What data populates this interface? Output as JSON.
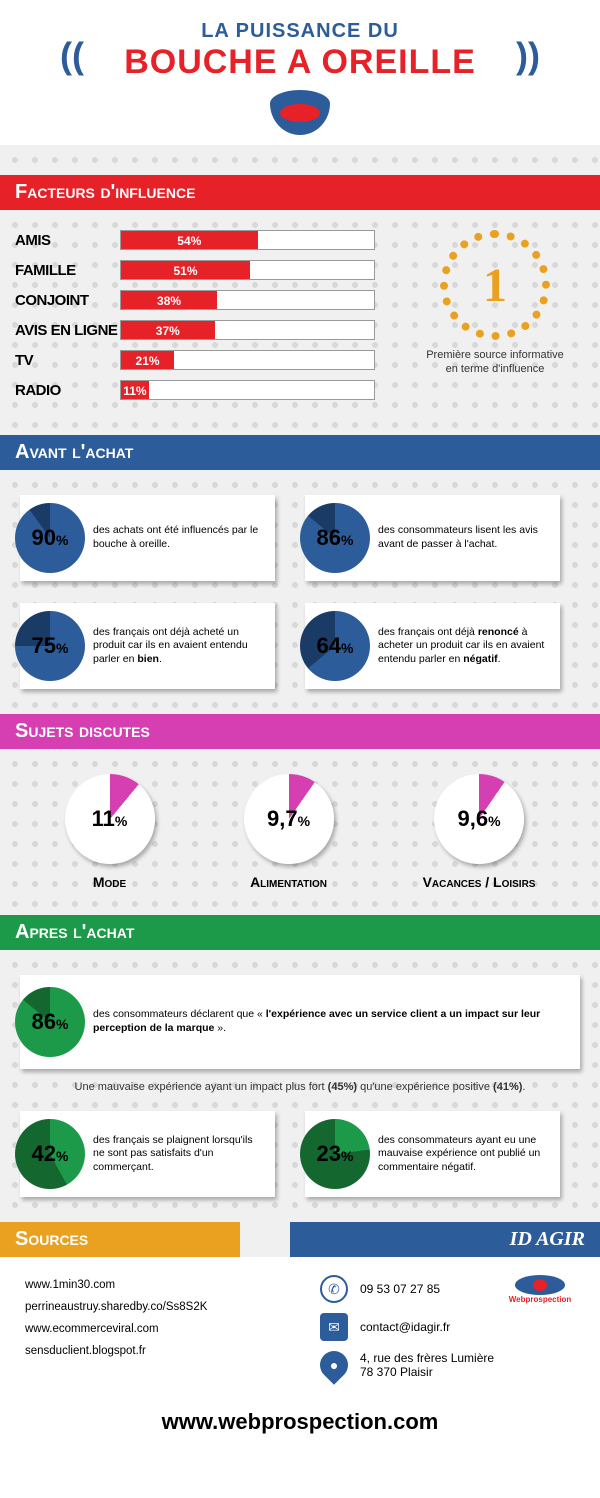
{
  "colors": {
    "red": "#e62128",
    "blue": "#2d5c9a",
    "magenta": "#d63fb2",
    "green": "#1c9a4a",
    "orange": "#e9a11f",
    "darkgreen": "#14672f",
    "darkblue": "#1a3b66",
    "white": "#ffffff"
  },
  "header": {
    "line1": "LA PUISSANCE DU",
    "line2": "BOUCHE A OREILLE"
  },
  "section1": {
    "title": "Facteurs d'influence",
    "bars": [
      {
        "label": "AMIS",
        "value": 54,
        "text": "54%"
      },
      {
        "label": "FAMILLE",
        "value": 51,
        "text": "51%"
      },
      {
        "label": "CONJOINT",
        "value": 38,
        "text": "38%"
      },
      {
        "label": "AVIS EN LIGNE",
        "value": 37,
        "text": "37%"
      },
      {
        "label": "TV",
        "value": 21,
        "text": "21%"
      },
      {
        "label": "RADIO",
        "value": 11,
        "text": "11%"
      }
    ],
    "badge_num": "1",
    "badge_text": "Première source informative en terme d'influence"
  },
  "section2": {
    "title": "Avant l'achat",
    "pie_fill": "#2d5c9a",
    "pie_empty": "#1a3b66",
    "stats": [
      {
        "value": "90",
        "pct": 90,
        "text": "des achats ont été influencés par le bouche à oreille."
      },
      {
        "value": "86",
        "pct": 86,
        "text": "des consommateurs lisent les avis avant de passer à l'achat."
      },
      {
        "value": "75",
        "pct": 75,
        "text_html": "des français ont déjà acheté un produit car ils en avaient entendu parler en <b>bien</b>."
      },
      {
        "value": "64",
        "pct": 64,
        "text_html": "des français ont déjà <b>renoncé</b> à acheter un produit car ils en avaient entendu parler en <b>négatif</b>."
      }
    ]
  },
  "section3": {
    "title": "Sujets discutes",
    "slice_color": "#d63fb2",
    "topics": [
      {
        "value": "11",
        "pct": 11,
        "label": "Mode"
      },
      {
        "value": "9,7",
        "pct": 9.7,
        "label": "Alimentation"
      },
      {
        "value": "9,6",
        "pct": 9.6,
        "label": "Vacances / Loisirs"
      }
    ]
  },
  "section4": {
    "title": "Apres l'achat",
    "pie_fill": "#1c9a4a",
    "pie_empty": "#14672f",
    "big": {
      "value": "86",
      "pct": 86,
      "text_html": "des consommateurs déclarent que « <b>l'expérience avec un service client a un impact sur leur perception de la marque</b> »."
    },
    "note_html": "Une mauvaise expérience ayant un impact plus fort <b>(45%)</b> qu'une expérience positive <b>(41%)</b>.",
    "stats": [
      {
        "value": "42",
        "pct": 42,
        "text": "des français se plaignent lorsqu'ils ne sont pas satisfaits d'un commerçant."
      },
      {
        "value": "23",
        "pct": 23,
        "text": "des consommateurs ayant eu une mauvaise expérience ont publié un commentaire négatif."
      }
    ]
  },
  "footer": {
    "sources_title": "Sources",
    "idagir_title": "ID AGIR",
    "sources": [
      "www.1min30.com",
      "perrineaustruy.sharedby.co/Ss8S2K",
      "www.ecommerceviral.com",
      "sensduclient.blogspot.fr"
    ],
    "phone": "09 53 07 27 85",
    "email": "contact@idagir.fr",
    "address": "4, rue des frères Lumière\n78 370 Plaisir",
    "logo": "Webprospection",
    "site": "www.webprospection.com"
  }
}
